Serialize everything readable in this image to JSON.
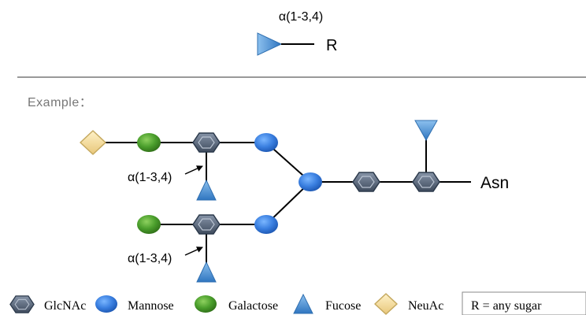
{
  "header": {
    "linkage_label": "α(1-3,4)",
    "reducing_end_label": "R"
  },
  "example": {
    "title": "Example：",
    "linkage_label_upper": "α(1-3,4)",
    "linkage_label_lower": "α(1-3,4)",
    "reducing_end_label": "Asn"
  },
  "legend": {
    "items": [
      {
        "symbol": "hexagon",
        "label": "GlcNAc"
      },
      {
        "symbol": "circle",
        "label": "Mannose"
      },
      {
        "symbol": "circle",
        "label": "Galactose"
      },
      {
        "symbol": "triangle",
        "label": "Fucose"
      },
      {
        "symbol": "diamond",
        "label": "NeuAc"
      }
    ],
    "note": "R = any sugar"
  },
  "colors": {
    "glcnac_fill": "#5d6b7e",
    "glcnac_stroke": "#2c3a4c",
    "mannose": "#3a7fe0",
    "galactose": "#4a9e2c",
    "fucose": "#4d8fd0",
    "neuac": "#f3dca0",
    "neuac_stroke": "#c5a95f",
    "line": "#000000",
    "divider": "#999999",
    "example_text": "#777777"
  }
}
